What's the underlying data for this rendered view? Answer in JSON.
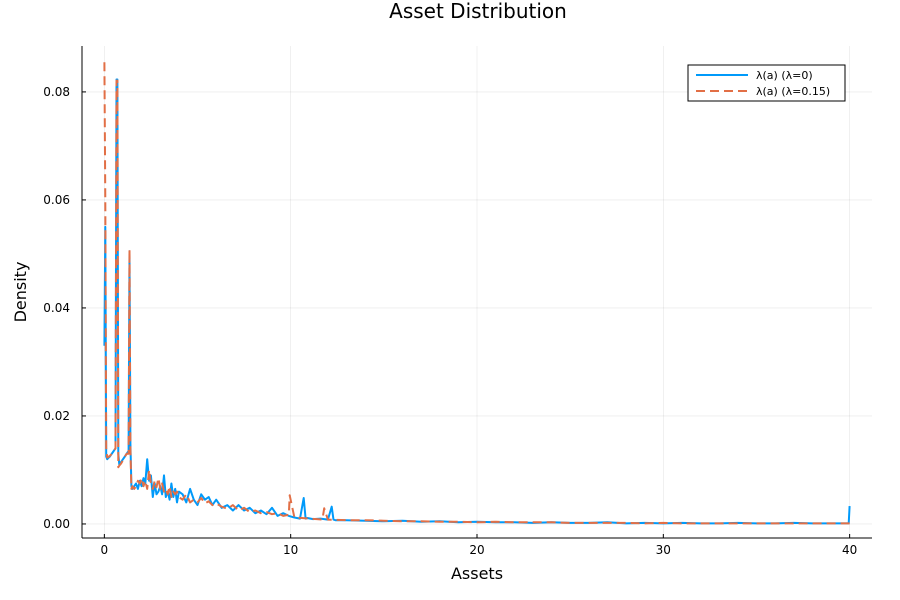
{
  "chart_data": {
    "type": "line",
    "title": "Asset Distribution",
    "xlabel": "Assets",
    "ylabel": "Density",
    "xlim": [
      -1.2,
      41.2
    ],
    "ylim": [
      -0.0026,
      0.0885
    ],
    "x_ticks": [
      0,
      10,
      20,
      30,
      40
    ],
    "y_ticks": [
      0.0,
      0.02,
      0.04,
      0.06,
      0.08
    ],
    "x_tick_labels": [
      "0",
      "10",
      "20",
      "30",
      "40"
    ],
    "y_tick_labels": [
      "0.00",
      "0.02",
      "0.04",
      "0.06",
      "0.08"
    ],
    "grid": true,
    "legend_position": "top-right",
    "series": [
      {
        "name": "λ(a) (λ=0)",
        "color": "#009AFA",
        "dash": "solid",
        "x": [
          0.0,
          0.05,
          0.1,
          0.15,
          0.2,
          0.3,
          0.4,
          0.5,
          0.6,
          0.65,
          0.7,
          0.75,
          0.8,
          0.9,
          1.0,
          1.1,
          1.2,
          1.3,
          1.35,
          1.4,
          1.45,
          1.5,
          1.6,
          1.7,
          1.8,
          1.9,
          2.0,
          2.1,
          2.2,
          2.3,
          2.4,
          2.5,
          2.6,
          2.7,
          2.8,
          2.9,
          3.0,
          3.1,
          3.2,
          3.3,
          3.4,
          3.5,
          3.6,
          3.7,
          3.8,
          3.9,
          4.0,
          4.2,
          4.4,
          4.6,
          4.8,
          5.0,
          5.2,
          5.4,
          5.6,
          5.8,
          6.0,
          6.3,
          6.6,
          6.9,
          7.2,
          7.5,
          7.8,
          8.1,
          8.4,
          8.7,
          9.0,
          9.3,
          9.6,
          9.9,
          10.2,
          10.5,
          10.7,
          10.8,
          10.9,
          11.2,
          11.6,
          12.0,
          12.2,
          12.3,
          12.4,
          13.0,
          14.0,
          15.0,
          16.0,
          17.0,
          18.0,
          19.0,
          20.0,
          21.0,
          22.0,
          23.0,
          24.0,
          25.0,
          26.0,
          27.0,
          28.0,
          29.0,
          30.0,
          31.0,
          32.0,
          33.0,
          34.0,
          35.0,
          36.0,
          37.0,
          38.0,
          39.0,
          39.5,
          39.9,
          39.95,
          40.0
        ],
        "y": [
          0.033,
          0.055,
          0.0125,
          0.012,
          0.0122,
          0.0125,
          0.013,
          0.0135,
          0.014,
          0.0823,
          0.0823,
          0.013,
          0.011,
          0.0115,
          0.012,
          0.0125,
          0.013,
          0.0135,
          0.0505,
          0.015,
          0.007,
          0.0065,
          0.007,
          0.0075,
          0.0065,
          0.008,
          0.007,
          0.0085,
          0.0075,
          0.012,
          0.008,
          0.009,
          0.005,
          0.0075,
          0.0055,
          0.006,
          0.007,
          0.0055,
          0.009,
          0.005,
          0.006,
          0.0045,
          0.0075,
          0.005,
          0.0065,
          0.004,
          0.006,
          0.0055,
          0.004,
          0.0065,
          0.0045,
          0.0035,
          0.0055,
          0.0045,
          0.005,
          0.0035,
          0.0045,
          0.003,
          0.0035,
          0.0025,
          0.0035,
          0.0025,
          0.003,
          0.002,
          0.0025,
          0.0018,
          0.003,
          0.0015,
          0.002,
          0.0015,
          0.0012,
          0.001,
          0.0048,
          0.001,
          0.0011,
          0.0009,
          0.001,
          0.0008,
          0.0032,
          0.0008,
          0.0007,
          0.0007,
          0.0006,
          0.0005,
          0.0006,
          0.0004,
          0.0005,
          0.0003,
          0.0004,
          0.0003,
          0.0003,
          0.0002,
          0.0003,
          0.0002,
          0.0002,
          0.0003,
          0.0001,
          0.0002,
          0.0001,
          0.0002,
          0.0001,
          0.0001,
          0.0002,
          0.0001,
          0.0001,
          0.0002,
          0.0001,
          0.0001,
          0.0001,
          0.0001,
          0.0001,
          0.0033
        ]
      },
      {
        "name": "λ(a) (λ=0.15)",
        "color": "#E26F46",
        "dash": "dash",
        "x": [
          0.0,
          0.05,
          0.1,
          0.15,
          0.2,
          0.3,
          0.4,
          0.5,
          0.6,
          0.65,
          0.7,
          0.75,
          0.8,
          0.9,
          1.0,
          1.1,
          1.2,
          1.3,
          1.35,
          1.4,
          1.45,
          1.5,
          1.6,
          1.7,
          1.8,
          1.9,
          2.0,
          2.1,
          2.2,
          2.3,
          2.4,
          2.5,
          2.6,
          2.7,
          2.8,
          2.9,
          3.0,
          3.1,
          3.2,
          3.3,
          3.4,
          3.5,
          3.6,
          3.7,
          3.8,
          3.9,
          4.0,
          4.2,
          4.4,
          4.6,
          4.8,
          5.0,
          5.2,
          5.4,
          5.6,
          5.8,
          6.0,
          6.3,
          6.6,
          6.9,
          7.2,
          7.5,
          7.8,
          8.1,
          8.4,
          8.7,
          9.0,
          9.3,
          9.6,
          9.9,
          9.95,
          10.2,
          10.6,
          11.0,
          11.4,
          11.7,
          11.8,
          12.0,
          13.0,
          14.0,
          15.0,
          16.0,
          17.0,
          18.0,
          19.0,
          20.0,
          21.0,
          22.0,
          23.0,
          24.0,
          25.0,
          26.0,
          27.0,
          28.0,
          29.0,
          30.0,
          31.0,
          32.0,
          33.0,
          34.0,
          35.0,
          36.0,
          37.0,
          38.0,
          39.0,
          39.5,
          39.9,
          40.0
        ],
        "y": [
          0.0855,
          0.06,
          0.014,
          0.0123,
          0.0124,
          0.0126,
          0.013,
          0.0135,
          0.014,
          0.0821,
          0.0821,
          0.0105,
          0.0108,
          0.0112,
          0.0118,
          0.0125,
          0.013,
          0.013,
          0.0508,
          0.014,
          0.0065,
          0.007,
          0.0065,
          0.007,
          0.008,
          0.0075,
          0.0085,
          0.007,
          0.008,
          0.0065,
          0.01,
          0.0075,
          0.0065,
          0.008,
          0.0068,
          0.0085,
          0.0065,
          0.0075,
          0.006,
          0.0065,
          0.0055,
          0.007,
          0.005,
          0.006,
          0.0055,
          0.006,
          0.005,
          0.0045,
          0.0055,
          0.004,
          0.0045,
          0.004,
          0.0048,
          0.0038,
          0.0042,
          0.0035,
          0.0038,
          0.0032,
          0.0028,
          0.0035,
          0.0025,
          0.003,
          0.0022,
          0.0025,
          0.002,
          0.0022,
          0.0018,
          0.002,
          0.0015,
          0.0017,
          0.0053,
          0.0012,
          0.0011,
          0.001,
          0.0009,
          0.0008,
          0.0029,
          0.0008,
          0.0007,
          0.0007,
          0.0006,
          0.0005,
          0.0005,
          0.0004,
          0.0004,
          0.0003,
          0.0004,
          0.0003,
          0.0003,
          0.0003,
          0.0002,
          0.0002,
          0.0002,
          0.0002,
          0.0001,
          0.0002,
          0.0001,
          0.0001,
          0.0001,
          0.0001,
          0.0001,
          0.0001,
          0.0001,
          0.0001,
          0.0001,
          0.0001,
          0.0001,
          0.0001
        ]
      }
    ]
  }
}
